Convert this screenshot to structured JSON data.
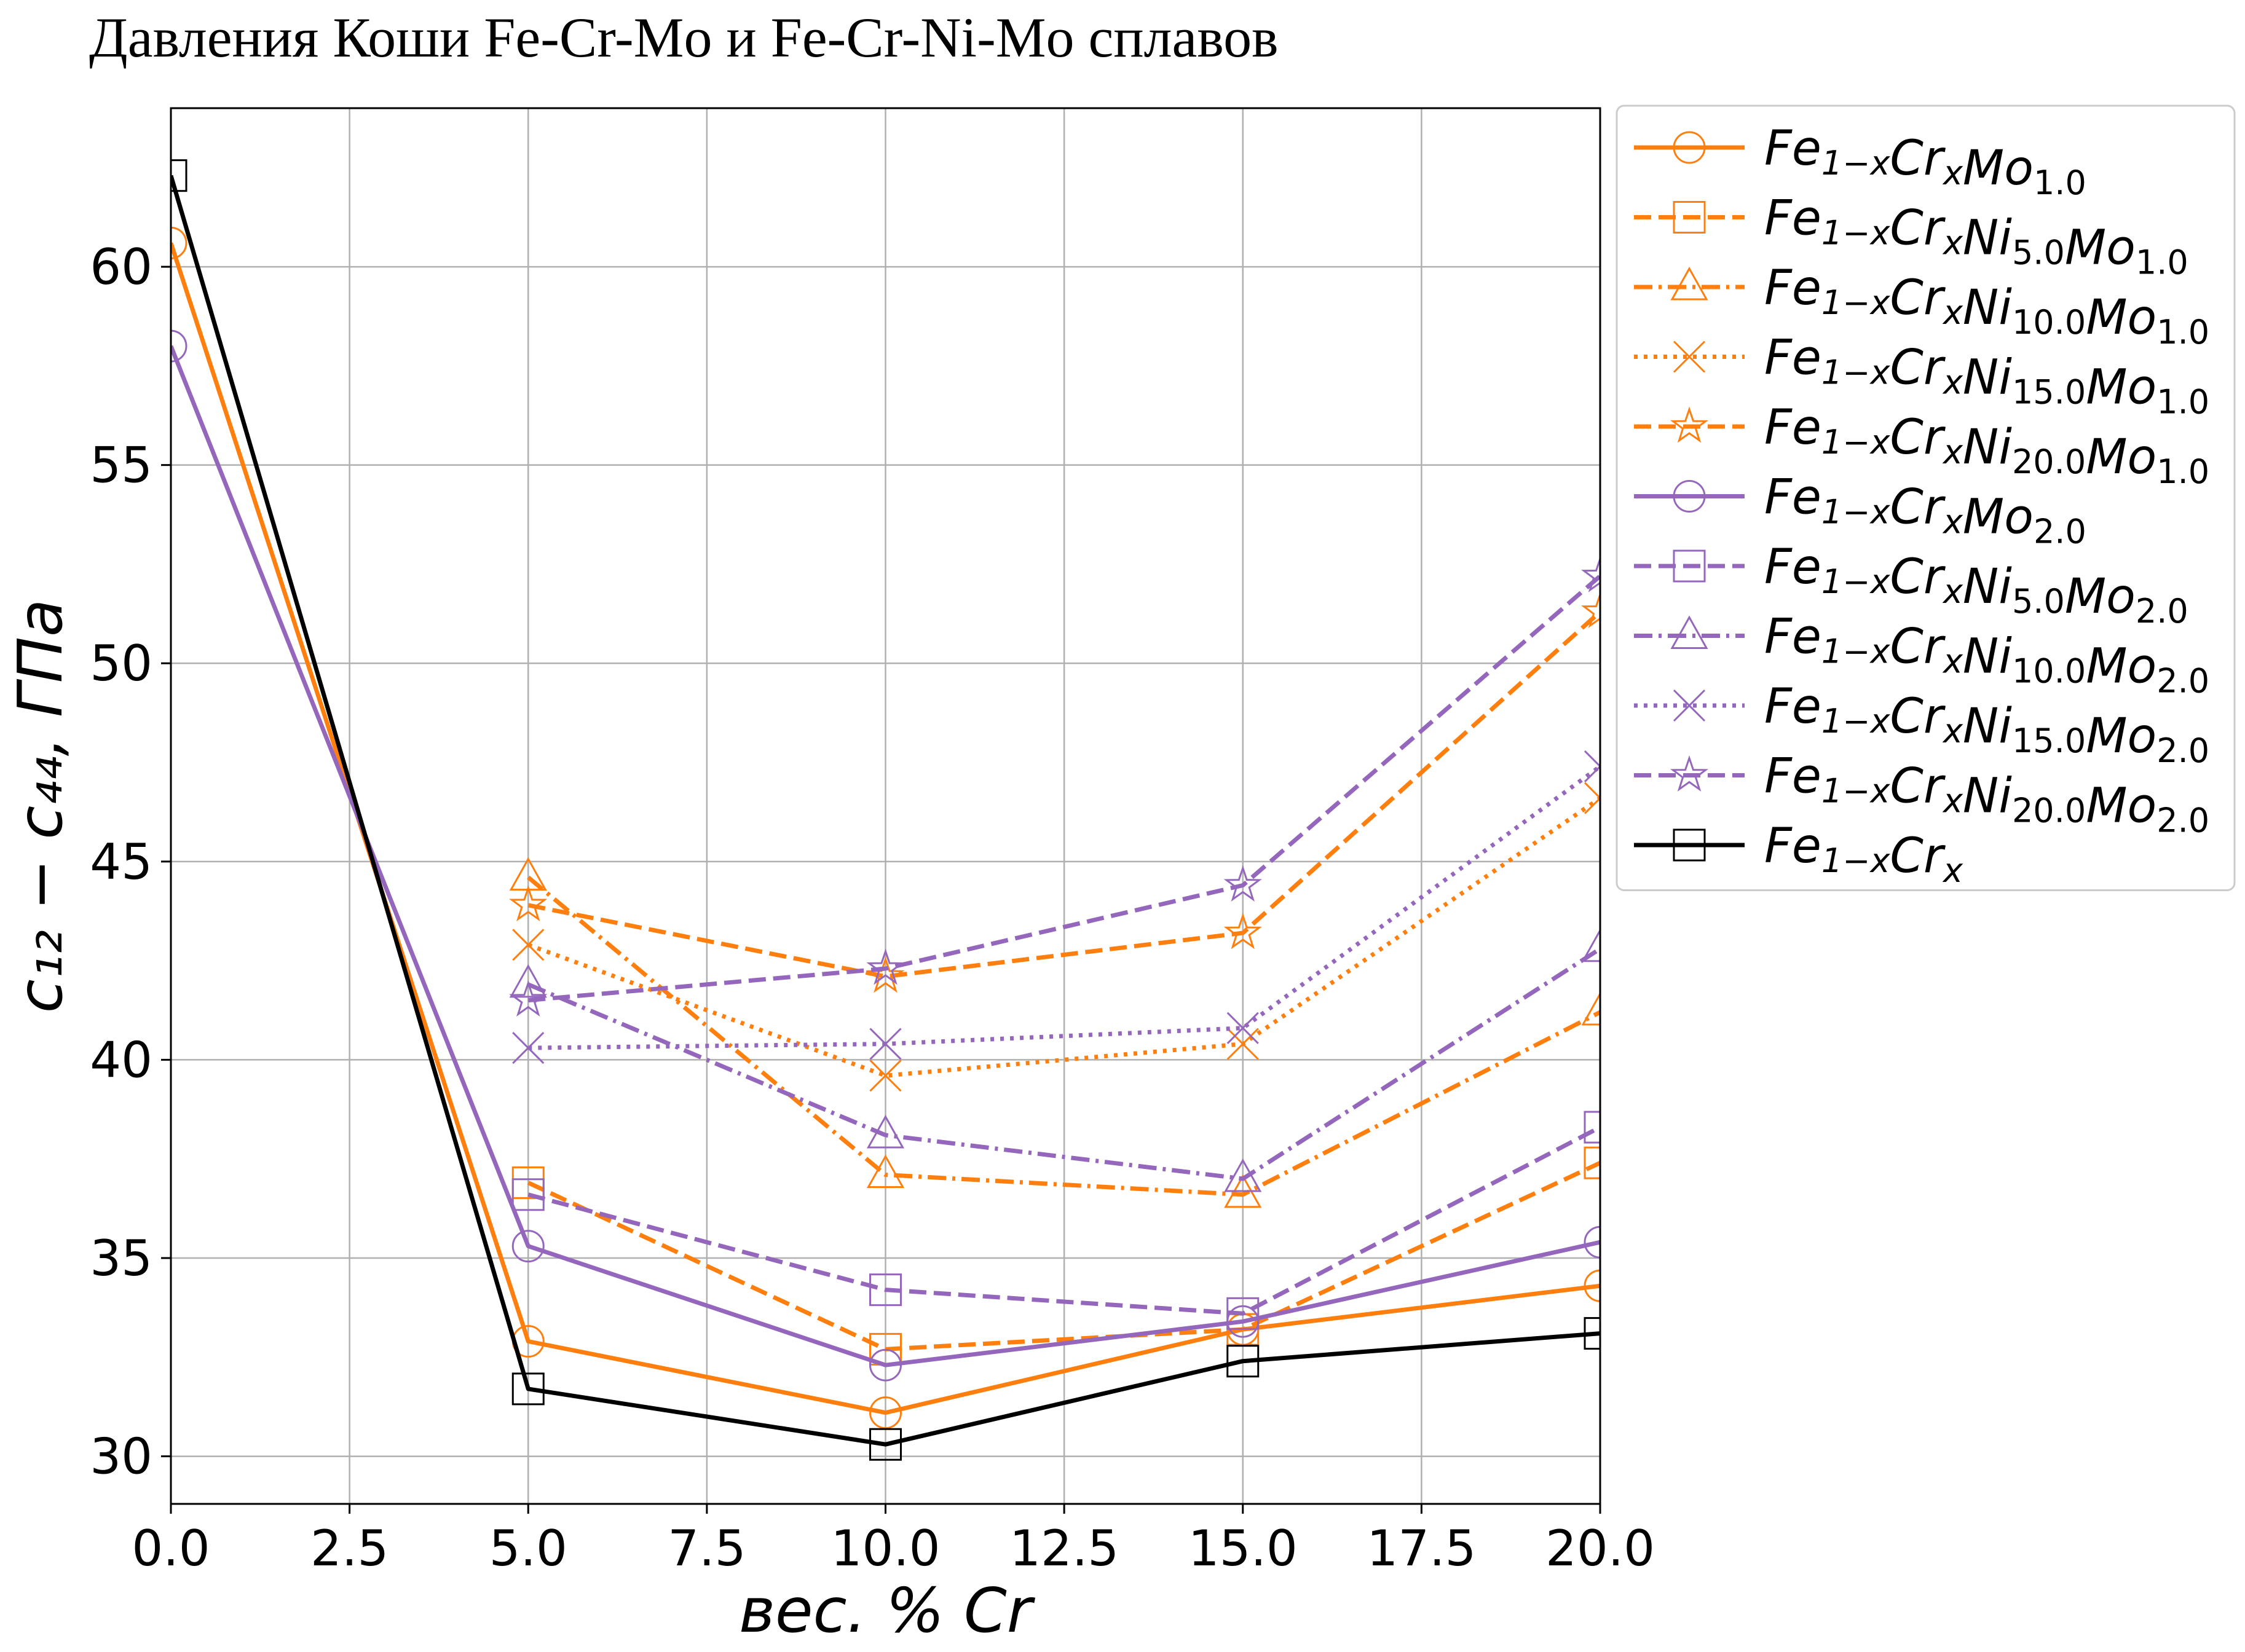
{
  "title": "Давления Коши Fe-Cr-Mo и Fe-Cr-Ni-Mo сплавов",
  "chart_data": {
    "type": "line",
    "title": "Давления Коши Fe-Cr-Mo и Fe-Cr-Ni-Mo сплавов",
    "xlabel": "вес. % Cr",
    "ylabel": "c₁₂ − c₄₄,  ГПа",
    "xlim": [
      0,
      20
    ],
    "ylim": [
      28.8,
      64
    ],
    "xticks": [
      "0.0",
      "2.5",
      "5.0",
      "7.5",
      "10.0",
      "12.5",
      "15.0",
      "17.5",
      "20.0"
    ],
    "yticks": [
      "30",
      "35",
      "40",
      "45",
      "50",
      "55",
      "60"
    ],
    "grid": true,
    "legend_position": "outside right",
    "x": [
      0,
      5,
      10,
      15,
      20
    ],
    "series": [
      {
        "name": "Fe1−xCrxMo1.0",
        "base": "Fe",
        "sub1": "1−x",
        "b2": "Cr",
        "sub2": "x",
        "b3": "",
        "sub3": "",
        "b4": "Mo",
        "sub4": "1.0",
        "color": "#ff7f0e",
        "linestyle": "solid",
        "marker": "circle",
        "values": [
          60.6,
          32.9,
          31.1,
          33.2,
          34.3
        ]
      },
      {
        "name": "Fe1−xCrxNi5.0Mo1.0",
        "base": "Fe",
        "sub1": "1−x",
        "b2": "Cr",
        "sub2": "x",
        "b3": "Ni",
        "sub3": "5.0",
        "b4": "Mo",
        "sub4": "1.0",
        "color": "#ff7f0e",
        "linestyle": "dashed",
        "marker": "square",
        "values": null,
        "values_x": [
          5,
          10,
          15,
          20
        ],
        "values_y": [
          36.9,
          32.7,
          33.2,
          37.4
        ]
      },
      {
        "name": "Fe1−xCrxNi10.0Mo1.0",
        "base": "Fe",
        "sub1": "1−x",
        "b2": "Cr",
        "sub2": "x",
        "b3": "Ni",
        "sub3": "10.0",
        "b4": "Mo",
        "sub4": "1.0",
        "color": "#ff7f0e",
        "linestyle": "dashdot",
        "marker": "triangle",
        "values_x": [
          5,
          10,
          15,
          20
        ],
        "values_y": [
          44.6,
          37.1,
          36.6,
          41.2
        ]
      },
      {
        "name": "Fe1−xCrxNi15.0Mo1.0",
        "base": "Fe",
        "sub1": "1−x",
        "b2": "Cr",
        "sub2": "x",
        "b3": "Ni",
        "sub3": "15.0",
        "b4": "Mo",
        "sub4": "1.0",
        "color": "#ff7f0e",
        "linestyle": "dotted",
        "marker": "x",
        "values_x": [
          5,
          10,
          15,
          20
        ],
        "values_y": [
          42.9,
          39.6,
          40.4,
          46.6
        ]
      },
      {
        "name": "Fe1−xCrxNi20.0Mo1.0",
        "base": "Fe",
        "sub1": "1−x",
        "b2": "Cr",
        "sub2": "x",
        "b3": "Ni",
        "sub3": "20.0",
        "b4": "Mo",
        "sub4": "1.0",
        "color": "#ff7f0e",
        "linestyle": "dashed",
        "marker": "star",
        "values_x": [
          5,
          10,
          15,
          20
        ],
        "values_y": [
          43.9,
          42.1,
          43.2,
          51.3
        ]
      },
      {
        "name": "Fe1−xCrxMo2.0",
        "base": "Fe",
        "sub1": "1−x",
        "b2": "Cr",
        "sub2": "x",
        "b3": "",
        "sub3": "",
        "b4": "Mo",
        "sub4": "2.0",
        "color": "#9467bd",
        "linestyle": "solid",
        "marker": "circle",
        "values_x": [
          0,
          5,
          10,
          15,
          20
        ],
        "values_y": [
          58.0,
          35.3,
          32.3,
          33.4,
          35.4
        ]
      },
      {
        "name": "Fe1−xCrxNi5.0Mo2.0",
        "base": "Fe",
        "sub1": "1−x",
        "b2": "Cr",
        "sub2": "x",
        "b3": "Ni",
        "sub3": "5.0",
        "b4": "Mo",
        "sub4": "2.0",
        "color": "#9467bd",
        "linestyle": "dashed",
        "marker": "square",
        "values_x": [
          5,
          10,
          15,
          20
        ],
        "values_y": [
          36.6,
          34.2,
          33.6,
          38.3
        ]
      },
      {
        "name": "Fe1−xCrxNi10.0Mo2.0",
        "base": "Fe",
        "sub1": "1−x",
        "b2": "Cr",
        "sub2": "x",
        "b3": "Ni",
        "sub3": "10.0",
        "b4": "Mo",
        "sub4": "2.0",
        "color": "#9467bd",
        "linestyle": "dashdot",
        "marker": "triangle",
        "values_x": [
          5,
          10,
          15,
          20
        ],
        "values_y": [
          41.9,
          38.1,
          37.0,
          42.8
        ]
      },
      {
        "name": "Fe1−xCrxNi15.0Mo2.0",
        "base": "Fe",
        "sub1": "1−x",
        "b2": "Cr",
        "sub2": "x",
        "b3": "Ni",
        "sub3": "15.0",
        "b4": "Mo",
        "sub4": "2.0",
        "color": "#9467bd",
        "linestyle": "dotted",
        "marker": "x",
        "values_x": [
          5,
          10,
          15,
          20
        ],
        "values_y": [
          40.3,
          40.4,
          40.8,
          47.4
        ]
      },
      {
        "name": "Fe1−xCrxNi20.0Mo2.0",
        "base": "Fe",
        "sub1": "1−x",
        "b2": "Cr",
        "sub2": "x",
        "b3": "Ni",
        "sub3": "20.0",
        "b4": "Mo",
        "sub4": "2.0",
        "color": "#9467bd",
        "linestyle": "dashed",
        "marker": "star",
        "values_x": [
          5,
          10,
          15,
          20
        ],
        "values_y": [
          41.5,
          42.3,
          44.4,
          52.2
        ]
      },
      {
        "name": "Fe1−xCrx",
        "base": "Fe",
        "sub1": "1−x",
        "b2": "Cr",
        "sub2": "x",
        "b3": "",
        "sub3": "",
        "b4": "",
        "sub4": "",
        "color": "#000000",
        "linestyle": "solid",
        "marker": "square",
        "values_x": [
          0,
          5,
          10,
          15,
          20
        ],
        "values_y": [
          62.3,
          31.7,
          30.3,
          32.4,
          33.1
        ]
      }
    ]
  }
}
